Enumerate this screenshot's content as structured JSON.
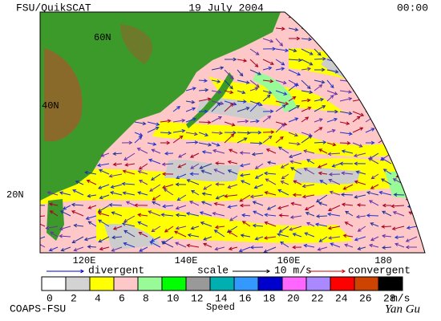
{
  "header": {
    "title": "FSU/QuikSCAT",
    "date": "19 July 2004",
    "time": "00:00"
  },
  "map": {
    "lat_labels": [
      "60N",
      "40N",
      "20N"
    ],
    "lon_labels": [
      "120E",
      "140E",
      "160E",
      "180"
    ]
  },
  "legend": {
    "divergent": "divergent",
    "scale": "scale",
    "scale_value": "10 m/s",
    "convergent": "convergent",
    "divergent_color": "#0000cc",
    "convergent_color": "#cc0000"
  },
  "colorbar": {
    "labels": [
      0,
      2,
      4,
      6,
      8,
      10,
      12,
      14,
      16,
      18,
      20,
      22,
      24,
      26,
      28
    ],
    "unit": "m/s",
    "title": "Speed",
    "colors": [
      "#ffffff",
      "#d3d3d3",
      "#ffff00",
      "#ffc8c8",
      "#98fb98",
      "#00ff00",
      "#999999",
      "#00b0b0",
      "#3399ff",
      "#0000cc",
      "#ff66ff",
      "#aa88ff",
      "#ff0000",
      "#cc4400",
      "#000000"
    ]
  },
  "footer": {
    "left": "COAPS-FSU",
    "right": "Yan Gu"
  }
}
